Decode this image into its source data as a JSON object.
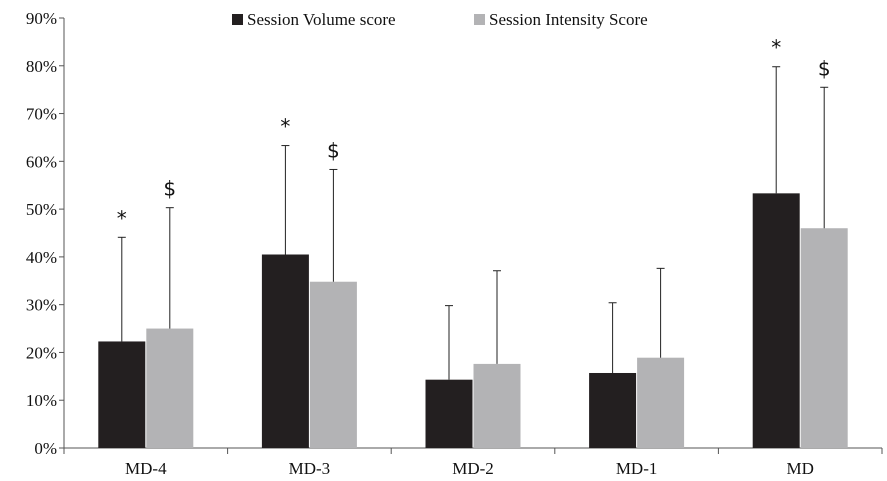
{
  "chart_data": {
    "type": "bar",
    "categories": [
      "MD-4",
      "MD-3",
      "MD-2",
      "MD-1",
      "MD"
    ],
    "series": [
      {
        "name": "Session Volume score",
        "color": "#231f20",
        "values": [
          22.3,
          40.5,
          14.3,
          15.7,
          53.3
        ],
        "error_upper": [
          44.1,
          63.3,
          29.8,
          30.4,
          79.8
        ],
        "markers": [
          "*",
          "*",
          "",
          "",
          "*"
        ]
      },
      {
        "name": "Session Intensity Score",
        "color": "#b3b3b5",
        "values": [
          25.0,
          34.8,
          17.6,
          18.9,
          46.0
        ],
        "error_upper": [
          50.3,
          58.3,
          37.1,
          37.6,
          75.5
        ],
        "markers": [
          "$",
          "$",
          "",
          "",
          "$"
        ]
      }
    ],
    "ylim": [
      0,
      90
    ],
    "yticks": [
      0,
      10,
      20,
      30,
      40,
      50,
      60,
      70,
      80,
      90
    ],
    "ytick_labels": [
      "0%",
      "10%",
      "20%",
      "30%",
      "40%",
      "50%",
      "60%",
      "70%",
      "80%",
      "90%"
    ],
    "title": "",
    "xlabel": "",
    "ylabel": "",
    "grid": false,
    "legend_position": "top"
  }
}
